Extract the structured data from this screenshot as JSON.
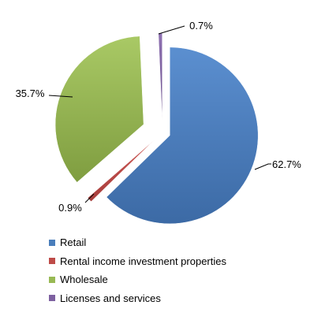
{
  "chart_data": {
    "type": "pie",
    "exploded": true,
    "categories": [
      "Retail",
      "Rental income investment properties",
      "Wholesale",
      "Licenses and services"
    ],
    "values": [
      62.7,
      0.9,
      35.7,
      0.7
    ],
    "labels": [
      "62.7%",
      "0.9%",
      "35.7%",
      "0.7%"
    ],
    "colors": [
      "#4a7ebb",
      "#be4b48",
      "#98b954",
      "#7d60a0"
    ],
    "legend_position": "bottom"
  }
}
